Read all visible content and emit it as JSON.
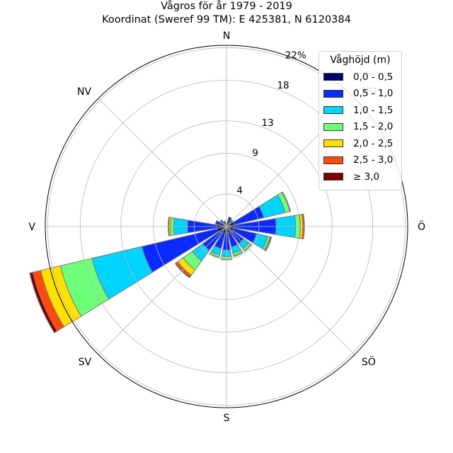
{
  "title": "Vågros för år 1979 - 2019",
  "subtitle": "Koordinat (Sweref 99 TM): E 425381, N 6120384",
  "chart_data": {
    "type": "polar-stacked-bar",
    "directions": [
      "N",
      "NO",
      "Ö",
      "SÖ",
      "S",
      "SV",
      "V",
      "NV"
    ],
    "radial_ticks": [
      "4",
      "9",
      "13",
      "18",
      "22%"
    ],
    "rmax": 22.3,
    "legend": {
      "title": "Våghöjd (m)",
      "placement": "upper-right",
      "classes": [
        {
          "label": "0,0 - 0,5",
          "color": "#00006e"
        },
        {
          "label": "0,5 - 1,0",
          "color": "#0a2aff"
        },
        {
          "label": "1,0 - 1,5",
          "color": "#00d4ff"
        },
        {
          "label": "1,5 - 2,0",
          "color": "#6eff7a"
        },
        {
          "label": "2,0 - 2,5",
          "color": "#ffe100"
        },
        {
          "label": "2,5 - 3,0",
          "color": "#ff4a0d"
        },
        {
          "label": "≥ 3,0",
          "color": "#800000"
        }
      ]
    },
    "sector_bearings_deg": [
      0,
      22.5,
      45,
      67.5,
      90,
      112.5,
      135,
      157.5,
      180,
      202.5,
      225,
      247.5,
      270,
      292.5,
      315,
      337.5
    ],
    "series": [
      {
        "name": "0,0 - 0,5",
        "values": [
          0.1,
          0.8,
          0.6,
          1.0,
          1.0,
          0.9,
          0.9,
          0.8,
          0.8,
          0.9,
          1.0,
          1.2,
          1.2,
          0.8,
          0.5,
          0.6
        ]
      },
      {
        "name": "0,5 - 1,0",
        "values": [
          0.0,
          0.4,
          0.4,
          3.7,
          5.1,
          2.9,
          1.7,
          1.8,
          2.1,
          1.9,
          2.6,
          9.5,
          3.6,
          0.6,
          0.5,
          0.1
        ]
      },
      {
        "name": "1,0 - 1,5",
        "values": [
          0.0,
          0.0,
          0.0,
          2.7,
          2.4,
          1.4,
          0.8,
          0.8,
          0.8,
          0.8,
          1.6,
          6.3,
          1.7,
          0.0,
          0.0,
          0.0
        ]
      },
      {
        "name": "1,5 - 2,0",
        "values": [
          0.0,
          0.0,
          0.0,
          0.6,
          0.6,
          0.3,
          0.3,
          0.3,
          0.3,
          0.3,
          1.4,
          4.0,
          0.4,
          0.0,
          0.0,
          0.0
        ]
      },
      {
        "name": "2,0 - 2,5",
        "values": [
          0.0,
          0.0,
          0.0,
          0.1,
          0.3,
          0.1,
          0.1,
          0.1,
          0.1,
          0.1,
          0.8,
          2.5,
          0.2,
          0.0,
          0.0,
          0.0
        ]
      },
      {
        "name": "2,5 - 3,0",
        "values": [
          0.0,
          0.0,
          0.0,
          0.0,
          0.2,
          0.1,
          0.0,
          0.0,
          0.0,
          0.0,
          0.3,
          1.0,
          0.1,
          0.0,
          0.0,
          0.0
        ]
      },
      {
        "name": "≥ 3,0",
        "values": [
          0.0,
          0.0,
          0.0,
          0.0,
          0.0,
          0.0,
          0.0,
          0.0,
          0.0,
          0.0,
          0.1,
          0.4,
          0.0,
          0.0,
          0.0,
          0.0
        ]
      }
    ],
    "grid": true
  }
}
